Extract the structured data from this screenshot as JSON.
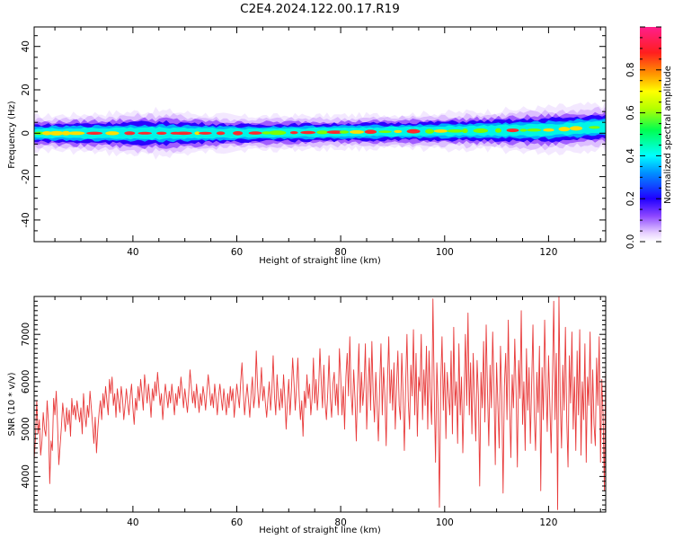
{
  "title": "C2E4.2024.122.00.17.R19",
  "colors": {
    "snr_line": "#e83a3a",
    "axis": "#000000"
  },
  "chart_data": [
    {
      "type": "heatmap",
      "xlabel": "Height of straight line (km)",
      "ylabel": "Frequency (Hz)",
      "xlim": [
        21,
        131
      ],
      "ylim": [
        -50,
        49
      ],
      "xticks": [
        40,
        60,
        80,
        100,
        120
      ],
      "yticks": [
        40,
        20,
        0,
        -20,
        -40
      ],
      "ytick_labels": [
        "40",
        "20",
        "0",
        "-20",
        "-40"
      ],
      "colorbar": {
        "label": "Normalized spectral amplitude",
        "range": [
          0,
          1
        ],
        "ticks": [
          0.0,
          0.2,
          0.4,
          0.6,
          0.8
        ],
        "tick_labels": [
          "0.0",
          "0.2",
          "0.4",
          "0.6",
          "0.8"
        ]
      },
      "band_center_hz": [
        [
          21,
          0
        ],
        [
          60,
          0
        ],
        [
          80,
          0.5
        ],
        [
          100,
          1
        ],
        [
          120,
          1.5
        ],
        [
          131,
          3
        ]
      ],
      "band_halfwidth_hz": [
        [
          21,
          3
        ],
        [
          45,
          4
        ],
        [
          60,
          3
        ],
        [
          90,
          3
        ],
        [
          110,
          3.5
        ],
        [
          120,
          4
        ],
        [
          131,
          4
        ]
      ]
    },
    {
      "type": "line",
      "xlabel": "Height of straight line (km)",
      "ylabel": "SNR (10 * v/v)",
      "xlim": [
        21,
        131
      ],
      "ylim": [
        3250,
        7800
      ],
      "xticks": [
        40,
        60,
        80,
        100,
        120
      ],
      "yticks": [
        4000,
        5000,
        6000,
        7000
      ],
      "ytick_labels": [
        "4000",
        "5000",
        "6000",
        "7000"
      ],
      "series": [
        {
          "x_step_km": 0.25,
          "values": [
            4350,
            4800,
            5600,
            4900,
            5200,
            4450,
            4750,
            5350,
            5000,
            4850,
            5600,
            5150,
            3850,
            4750,
            4550,
            5650,
            5300,
            5800,
            5100,
            4250,
            4650,
            5050,
            5550,
            5250,
            4950,
            5450,
            5100,
            5400,
            4850,
            5650,
            5300,
            5500,
            5200,
            5600,
            5350,
            5150,
            5450,
            4900,
            5750,
            5300,
            5050,
            5500,
            5250,
            5800,
            5450,
            5100,
            4700,
            5250,
            4500,
            5000,
            5350,
            5600,
            5200,
            5750,
            5450,
            5900,
            5600,
            5300,
            6050,
            5750,
            6100,
            5500,
            5750,
            5250,
            5850,
            5600,
            5350,
            5900,
            5650,
            5200,
            5500,
            5850,
            5550,
            5300,
            5700,
            5950,
            5450,
            5100,
            5650,
            5400,
            5900,
            5600,
            6050,
            5750,
            5400,
            6150,
            5850,
            5550,
            5950,
            5650,
            5250,
            5850,
            5600,
            6000,
            5700,
            6200,
            5850,
            5500,
            5750,
            5200,
            5600,
            5950,
            5700,
            5450,
            5800,
            5550,
            5950,
            5650,
            5300,
            5750,
            5500,
            5900,
            5650,
            6100,
            5800,
            5450,
            5850,
            5600,
            5350,
            5750,
            6250,
            5900,
            5550,
            5800,
            5450,
            5950,
            5650,
            5350,
            5750,
            5500,
            5900,
            5700,
            5400,
            5800,
            6150,
            5850,
            5500,
            5750,
            5450,
            5950,
            5650,
            5300,
            5700,
            5950,
            5650,
            5400,
            5850,
            5550,
            5300,
            5750,
            5450,
            5900,
            5600,
            5850,
            5250,
            5600,
            5950,
            5700,
            5450,
            6000,
            6400,
            5800,
            5300,
            5650,
            5950,
            5600,
            5250,
            5750,
            6100,
            5450,
            5700,
            6650,
            5900,
            5450,
            5800,
            6300,
            5600,
            5900,
            5550,
            5250,
            5650,
            6000,
            5400,
            5800,
            6550,
            5700,
            5300,
            6150,
            5650,
            5400,
            5850,
            5450,
            6150,
            5650,
            5000,
            5600,
            6050,
            5300,
            5800,
            6500,
            6000,
            5400,
            5900,
            6500,
            5700,
            5200,
            5600,
            4850,
            5800,
            5450,
            6150,
            5650,
            5950,
            5300,
            5650,
            6500,
            5550,
            6050,
            5400,
            5850,
            6700,
            6000,
            5450,
            6350,
            5550,
            5200,
            5750,
            6550,
            5650,
            5250,
            5950,
            6200,
            5500,
            5950,
            5300,
            6700,
            6100,
            5300,
            5900,
            5000,
            6100,
            6600,
            5700,
            6950,
            5750,
            5300,
            6250,
            5650,
            4750,
            5900,
            6800,
            5350,
            6200,
            5500,
            5900,
            6800,
            5000,
            5850,
            6500,
            5400,
            6850,
            5750,
            5150,
            6200,
            5500,
            4750,
            5900,
            6800,
            5300,
            6300,
            5700,
            4650,
            6000,
            6950,
            5550,
            6250,
            5400,
            6400,
            5000,
            5900,
            6650,
            5500,
            5200,
            6600,
            5750,
            4550,
            5950,
            7000,
            5600,
            5000,
            6350,
            5700,
            7100,
            5300,
            6600,
            4850,
            6100,
            5800,
            7000,
            5200,
            6250,
            5500,
            6750,
            5000,
            6650,
            5700,
            5100,
            7750,
            5800,
            4300,
            6400,
            5500,
            3350,
            5950,
            6950,
            5400,
            6400,
            4800,
            6200,
            5700,
            5300,
            6650,
            4900,
            7150,
            5500,
            6000,
            4700,
            6800,
            5300,
            6100,
            4500,
            5700,
            7000,
            5500,
            7450,
            5300,
            6400,
            4900,
            6600,
            5600,
            4750,
            6450,
            5700,
            3800,
            6200,
            5450,
            6850,
            5150,
            7200,
            5800,
            4650,
            6350,
            5450,
            7050,
            5900,
            4250,
            6400,
            5500,
            4600,
            6750,
            5700,
            3650,
            5900,
            6600,
            5200,
            7300,
            5500,
            4400,
            6150,
            5450,
            6900,
            5800,
            4200,
            6450,
            5650,
            7500,
            5100,
            6000,
            4550,
            6700,
            5400,
            6300,
            4700,
            5950,
            7200,
            5300,
            4550,
            6200,
            5350,
            6750,
            3700,
            6300,
            5200,
            7300,
            5950,
            4950,
            6550,
            5500,
            4500,
            6050,
            7700,
            5200,
            6600,
            3300,
            7800,
            5600,
            4600,
            6350,
            5400,
            7150,
            5200,
            4200,
            6550,
            5550,
            7050,
            5000,
            6100,
            4550,
            6650,
            5300,
            7100,
            4450,
            6000,
            5200,
            6800,
            4300,
            6100,
            5500,
            7050,
            4700,
            6250,
            5100,
            4650,
            6500,
            5500,
            6950,
            4300,
            6050,
            5300,
            3700,
            6400,
            5450,
            7050,
            4800,
            6400,
            5600,
            4100,
            6300,
            5500,
            6900,
            4700,
            6100,
            5300,
            6500,
            4900,
            6300,
            5700,
            6900,
            4700,
            5600,
            6700,
            3850,
            6200,
            5300,
            6900,
            4600,
            6000,
            5500,
            6600,
            4400,
            6100,
            5400,
            6900,
            4900,
            6400,
            5200,
            7050,
            4500,
            6100,
            5500,
            6850,
            4900,
            6300,
            5800,
            4700,
            6500,
            5600,
            7650,
            4300,
            6400,
            5000,
            7650,
            5700,
            3800,
            6600,
            5300,
            7200,
            4900,
            6150
          ]
        }
      ]
    }
  ]
}
